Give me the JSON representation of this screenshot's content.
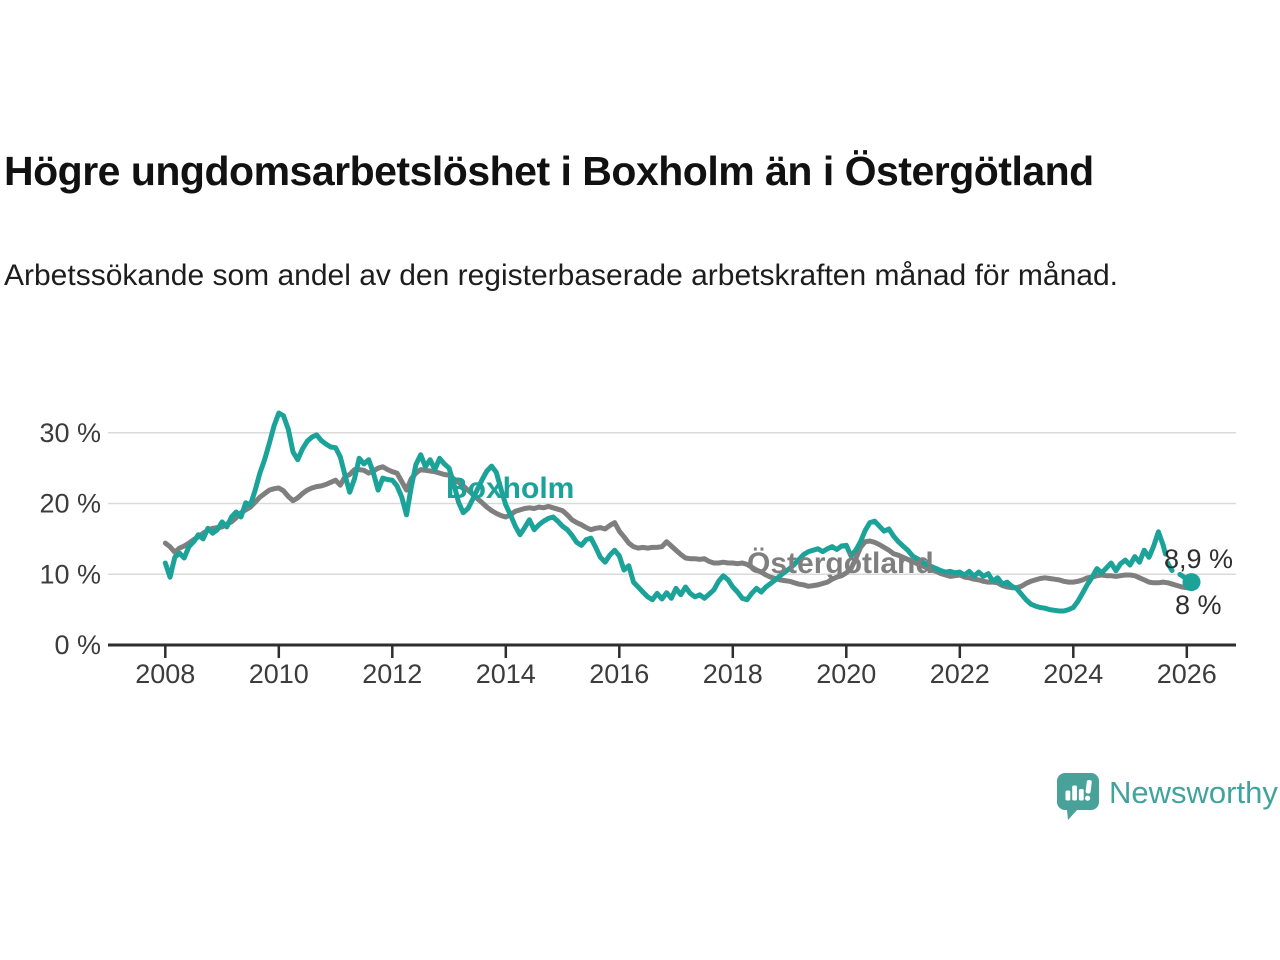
{
  "header": {
    "title": "Högre ungdomsarbetslöshet i Boxholm än i Östergötland",
    "subtitle": "Arbetssökande som andel av den registerbaserade arbetskraften månad för månad."
  },
  "chart_data": {
    "type": "line",
    "unit": "%",
    "x_start": 2008.0,
    "x_step_months": 1,
    "x_end_label_note": "monthly values Jan 2008 - Feb 2026",
    "xlim": [
      2007,
      2027.2
    ],
    "ylim": [
      0,
      33
    ],
    "grid": "horizontal",
    "legend_position": "inline-labels",
    "x_ticks": [
      {
        "value": 2008,
        "label": "2008"
      },
      {
        "value": 2010,
        "label": "2010"
      },
      {
        "value": 2012,
        "label": "2012"
      },
      {
        "value": 2014,
        "label": "2014"
      },
      {
        "value": 2016,
        "label": "2016"
      },
      {
        "value": 2018,
        "label": "2018"
      },
      {
        "value": 2020,
        "label": "2020"
      },
      {
        "value": 2022,
        "label": "2022"
      },
      {
        "value": 2024,
        "label": "2024"
      },
      {
        "value": 2026,
        "label": "2026"
      }
    ],
    "y_ticks": [
      {
        "value": 0,
        "label": "0 %"
      },
      {
        "value": 10,
        "label": "10 %"
      },
      {
        "value": 20,
        "label": "20 %"
      },
      {
        "value": 30,
        "label": "30 %"
      }
    ],
    "series": [
      {
        "name": "Boxholm",
        "color": "#1ba39a",
        "end_label": "8,9 %",
        "end_dot": true,
        "dashed_from_index": 211,
        "values": [
          11.6,
          9.6,
          12.4,
          13.0,
          12.3,
          13.9,
          14.6,
          15.6,
          15.0,
          16.5,
          15.8,
          16.3,
          17.4,
          16.7,
          18.1,
          18.8,
          18.1,
          20.1,
          19.8,
          21.9,
          24.3,
          26.2,
          28.5,
          31.0,
          32.8,
          32.4,
          30.5,
          27.3,
          26.2,
          27.7,
          28.8,
          29.4,
          29.7,
          28.9,
          28.4,
          28.0,
          27.9,
          26.6,
          24.0,
          21.6,
          23.5,
          26.4,
          25.6,
          26.2,
          24.3,
          21.9,
          23.6,
          23.4,
          23.3,
          22.5,
          20.9,
          18.4,
          22.3,
          25.5,
          26.9,
          25.2,
          26.2,
          24.8,
          26.4,
          25.6,
          25.0,
          22.8,
          20.2,
          18.7,
          19.3,
          20.6,
          22.0,
          23.4,
          24.6,
          25.3,
          24.4,
          22.0,
          19.8,
          18.4,
          16.8,
          15.6,
          16.6,
          17.7,
          16.3,
          17.0,
          17.5,
          17.9,
          18.1,
          17.5,
          16.8,
          16.3,
          15.5,
          14.5,
          14.1,
          14.9,
          15.1,
          13.8,
          12.4,
          11.7,
          12.7,
          13.4,
          12.6,
          10.6,
          11.2,
          8.9,
          8.2,
          7.5,
          6.8,
          6.4,
          7.3,
          6.5,
          7.4,
          6.6,
          8.0,
          7.1,
          8.2,
          7.3,
          6.8,
          7.1,
          6.6,
          7.2,
          7.8,
          9.0,
          9.8,
          9.2,
          8.2,
          7.5,
          6.6,
          6.4,
          7.3,
          8.0,
          7.5,
          8.2,
          8.7,
          9.2,
          9.8,
          10.3,
          10.8,
          11.4,
          12.1,
          12.8,
          13.2,
          13.4,
          13.6,
          13.2,
          13.6,
          13.9,
          13.5,
          14.0,
          14.1,
          12.6,
          13.4,
          14.6,
          16.2,
          17.3,
          17.5,
          16.8,
          16.1,
          16.4,
          15.4,
          14.6,
          14.0,
          13.4,
          12.6,
          12.2,
          11.8,
          11.4,
          11.1,
          10.8,
          10.5,
          10.3,
          10.4,
          10.2,
          10.3,
          9.9,
          10.4,
          9.7,
          10.3,
          9.7,
          10.1,
          9.0,
          9.5,
          8.6,
          8.9,
          8.3,
          8.0,
          7.2,
          6.4,
          5.8,
          5.5,
          5.3,
          5.2,
          5.0,
          4.9,
          4.8,
          4.8,
          5.0,
          5.3,
          6.2,
          7.4,
          8.6,
          9.6,
          10.8,
          10.2,
          10.9,
          11.6,
          10.5,
          11.5,
          12.0,
          11.3,
          12.5,
          11.7,
          13.4,
          12.4,
          14.0,
          16.0,
          14.1,
          11.5,
          10.4,
          10.2,
          9.8,
          9.3,
          8.9
        ]
      },
      {
        "name": "Östergötland",
        "color": "#7f7f7f",
        "end_label": "8 %",
        "end_dot": false,
        "dashed_from_index": null,
        "values": [
          14.4,
          13.9,
          13.1,
          13.7,
          14.0,
          14.4,
          14.9,
          15.3,
          15.8,
          16.2,
          16.5,
          16.6,
          16.7,
          17.1,
          17.4,
          18.0,
          18.7,
          19.1,
          19.5,
          20.2,
          20.9,
          21.4,
          21.9,
          22.1,
          22.2,
          21.8,
          21.0,
          20.4,
          20.8,
          21.4,
          21.9,
          22.2,
          22.4,
          22.5,
          22.7,
          23.0,
          23.3,
          22.6,
          23.8,
          24.1,
          24.8,
          24.8,
          24.7,
          24.3,
          24.6,
          25.0,
          25.2,
          24.8,
          24.5,
          24.3,
          23.1,
          21.9,
          23.5,
          24.3,
          24.8,
          24.7,
          24.6,
          24.5,
          24.3,
          24.1,
          24.0,
          23.5,
          23.0,
          22.5,
          21.9,
          21.3,
          20.7,
          20.1,
          19.5,
          19.0,
          18.6,
          18.3,
          18.1,
          18.4,
          18.9,
          19.1,
          19.3,
          19.4,
          19.3,
          19.5,
          19.4,
          19.6,
          19.4,
          19.2,
          19.0,
          18.4,
          17.7,
          17.3,
          17.0,
          16.6,
          16.3,
          16.5,
          16.6,
          16.4,
          16.9,
          17.3,
          16.1,
          15.3,
          14.4,
          13.9,
          13.7,
          13.8,
          13.7,
          13.8,
          13.8,
          13.9,
          14.6,
          14.0,
          13.4,
          12.8,
          12.3,
          12.2,
          12.2,
          12.1,
          12.2,
          11.8,
          11.6,
          11.6,
          11.7,
          11.6,
          11.6,
          11.5,
          11.6,
          11.4,
          11.0,
          10.6,
          10.3,
          9.9,
          9.6,
          9.4,
          9.2,
          9.1,
          9.0,
          8.8,
          8.6,
          8.5,
          8.3,
          8.4,
          8.5,
          8.7,
          8.9,
          9.3,
          9.6,
          9.8,
          10.2,
          10.8,
          12.2,
          13.8,
          14.6,
          14.7,
          14.5,
          14.2,
          13.8,
          13.4,
          12.9,
          12.7,
          12.4,
          12.1,
          11.8,
          11.5,
          11.2,
          10.9,
          10.6,
          10.4,
          10.1,
          9.9,
          9.7,
          9.8,
          9.9,
          9.6,
          9.5,
          9.3,
          9.2,
          9.0,
          8.9,
          8.9,
          8.8,
          8.4,
          8.2,
          8.1,
          8.1,
          8.3,
          8.7,
          9.0,
          9.2,
          9.4,
          9.5,
          9.4,
          9.3,
          9.2,
          9.0,
          8.9,
          8.9,
          9.0,
          9.2,
          9.5,
          9.6,
          9.8,
          9.9,
          9.8,
          9.8,
          9.7,
          9.8,
          9.9,
          9.9,
          9.8,
          9.5,
          9.2,
          8.9,
          8.8,
          8.8,
          8.9,
          8.8,
          8.6,
          8.4,
          8.2,
          8.1,
          8.0
        ]
      }
    ],
    "style": {
      "axis_color": "#2e2e2e",
      "grid_color": "#dadada",
      "tick_label_color": "#3c3c3c",
      "line_width": 5
    }
  },
  "branding": {
    "wordmark": "Newsworthy",
    "logo_color": "#48a29a"
  }
}
